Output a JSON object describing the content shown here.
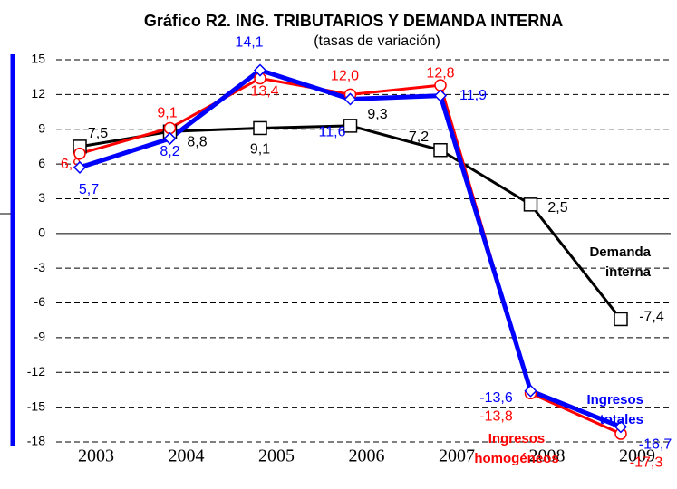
{
  "chart_data": {
    "type": "line",
    "title": "Gráfico R2. ING. TRIBUTARIOS Y DEMANDA INTERNA",
    "subtitle": "(tasas de variación)",
    "categories": [
      "2003",
      "2004",
      "2005",
      "2006",
      "2007",
      "2008",
      "2009"
    ],
    "series": [
      {
        "name": "Demanda interna",
        "color": "#000000",
        "marker": "square",
        "values": [
          7.5,
          8.8,
          9.1,
          9.3,
          7.2,
          2.5,
          -7.4
        ],
        "value_labels": [
          "7,5",
          "8,8",
          "9,1",
          "9,3",
          "7,2",
          "2,5",
          "-7,4"
        ]
      },
      {
        "name": "Ingresos homogéneos",
        "color": "#ff0000",
        "marker": "circle",
        "values": [
          6.9,
          9.1,
          13.4,
          12.0,
          12.8,
          -13.8,
          -17.3
        ],
        "value_labels": [
          "6,9",
          "9,1",
          "13,4",
          "12,0",
          "12,8",
          "-13,8",
          "-17,3"
        ]
      },
      {
        "name": "Ingresos totales",
        "color": "#0000ff",
        "marker": "diamond",
        "values": [
          5.7,
          8.2,
          14.1,
          11.6,
          11.9,
          -13.6,
          -16.7
        ],
        "value_labels": [
          "5,7",
          "8,2",
          "14,1",
          "11,6",
          "11,9",
          "-13,6",
          "-16,7"
        ]
      }
    ],
    "ylim": [
      -18,
      15
    ],
    "yticks": [
      -18,
      -15,
      -12,
      -9,
      -6,
      -3,
      0,
      3,
      6,
      9,
      12,
      15
    ],
    "grid": true
  }
}
